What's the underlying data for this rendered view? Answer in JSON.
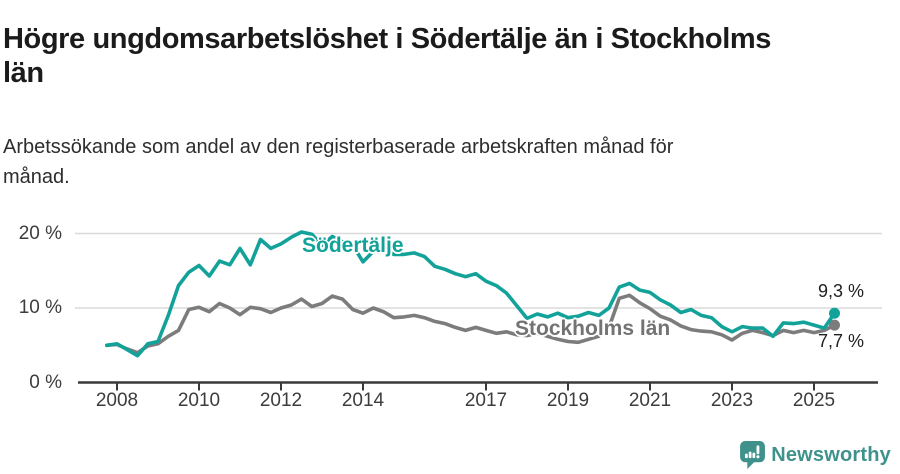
{
  "header": {
    "title_lines": [
      "Högre ungdomsarbetslöshet i Södertälje än i Stockholms",
      "län"
    ],
    "subtitle_lines": [
      "Arbetssökande som andel av den registerbaserade arbetskraften månad för",
      "månad."
    ]
  },
  "colors": {
    "accent_teal": "#13a29a",
    "series_gray": "#7c7c7c",
    "axis": "#3a3a3a",
    "gridline": "#dadada",
    "text": "#1b1b1b",
    "brand_teal": "#3f928c"
  },
  "chart_data": {
    "type": "line",
    "title": "Högre ungdomsarbetslöshet i Södertälje än i Stockholms län",
    "subtitle": "Arbetssökande som andel av den registerbaserade arbetskraften månad för månad.",
    "ylabel": "",
    "xlabel": "",
    "grid": "horizontal",
    "legend_position": "inline-annotations",
    "y_axis": {
      "unit": "%",
      "range": [
        0,
        22
      ],
      "ticks": [
        {
          "value": 0,
          "label": "0 %"
        },
        {
          "value": 10,
          "label": "10 %"
        },
        {
          "value": 20,
          "label": "20 %"
        }
      ]
    },
    "x_axis": {
      "range": [
        2007.75,
        2025.6
      ],
      "ticks": [
        {
          "value": 2008,
          "label": "2008"
        },
        {
          "value": 2010,
          "label": "2010"
        },
        {
          "value": 2012,
          "label": "2012"
        },
        {
          "value": 2014,
          "label": "2014"
        },
        {
          "value": 2017,
          "label": "2017"
        },
        {
          "value": 2019,
          "label": "2019"
        },
        {
          "value": 2021,
          "label": "2021"
        },
        {
          "value": 2023,
          "label": "2023"
        },
        {
          "value": 2025,
          "label": "2025"
        }
      ]
    },
    "x_start": 2007.75,
    "x_step": 0.25,
    "series": [
      {
        "name": "Södertälje",
        "color": "#13a29a",
        "end_label": "9,3 %",
        "end_value": 9.3,
        "values": [
          5.0,
          5.2,
          4.4,
          3.6,
          5.2,
          5.5,
          9.0,
          13.0,
          14.8,
          15.7,
          14.3,
          16.3,
          15.8,
          18.0,
          15.8,
          19.2,
          18.0,
          18.6,
          19.5,
          20.2,
          19.9,
          18.4,
          19.6,
          18.9,
          18.4,
          16.2,
          17.6,
          17.9,
          17.2,
          17.2,
          17.4,
          16.9,
          15.6,
          15.2,
          14.6,
          14.2,
          14.6,
          13.6,
          13.0,
          12.0,
          10.3,
          8.6,
          9.2,
          8.8,
          9.3,
          8.7,
          8.9,
          9.4,
          9.0,
          10.0,
          12.8,
          13.3,
          12.4,
          12.1,
          11.1,
          10.4,
          9.4,
          9.8,
          9.0,
          8.7,
          7.5,
          6.8,
          7.5,
          7.3,
          7.3,
          6.2,
          8.0,
          7.9,
          8.1,
          7.7,
          7.3,
          9.3
        ]
      },
      {
        "name": "Stockholms län",
        "color": "#7c7c7c",
        "end_label": "7,7 %",
        "end_value": 7.7,
        "values": [
          5.0,
          5.1,
          4.5,
          4.0,
          4.9,
          5.2,
          6.2,
          7.0,
          9.8,
          10.1,
          9.5,
          10.6,
          10.0,
          9.1,
          10.1,
          9.9,
          9.4,
          10.0,
          10.4,
          11.2,
          10.2,
          10.6,
          11.6,
          11.2,
          9.8,
          9.3,
          10.0,
          9.5,
          8.7,
          8.8,
          9.0,
          8.7,
          8.2,
          7.9,
          7.4,
          7.0,
          7.4,
          7.0,
          6.6,
          6.8,
          6.4,
          6.3,
          6.6,
          6.2,
          5.8,
          5.5,
          5.4,
          5.8,
          6.2,
          7.4,
          11.3,
          11.7,
          10.7,
          9.9,
          8.9,
          8.4,
          7.6,
          7.1,
          6.9,
          6.8,
          6.4,
          5.7,
          6.6,
          7.0,
          6.7,
          6.3,
          7.0,
          6.7,
          7.0,
          6.7,
          7.0,
          7.7
        ]
      }
    ]
  },
  "footer": {
    "brand": "Newsworthy",
    "logo_icon": "newsworthy-bubble-chart-icon"
  }
}
